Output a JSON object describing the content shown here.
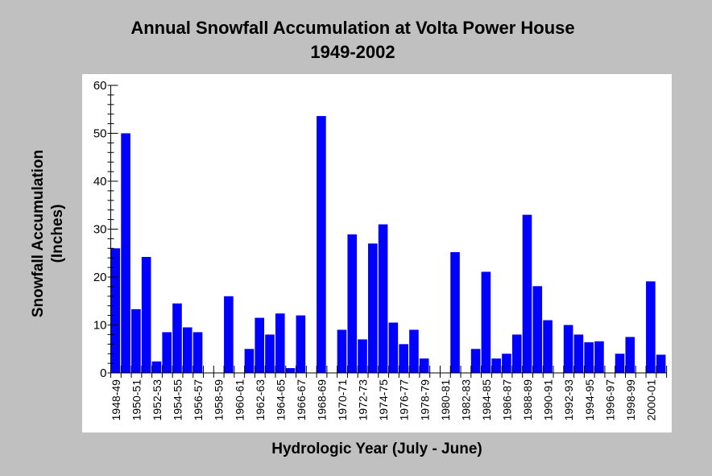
{
  "chart_data": {
    "type": "bar",
    "title": "Annual Snowfall Accumulation at Volta Power House",
    "subtitle": "1949-2002",
    "xlabel": "Hydrologic Year (July - June)",
    "ylabel_line1": "Snowfall Accumulation",
    "ylabel_line2": "(Inches)",
    "ylim": [
      0,
      60
    ],
    "yticks": [
      0,
      10,
      20,
      30,
      40,
      50,
      60
    ],
    "grid": false,
    "bar_color": "#0000ff",
    "categories": [
      "1948-49",
      "1949-50",
      "1950-51",
      "1951-52",
      "1952-53",
      "1953-54",
      "1954-55",
      "1955-56",
      "1956-57",
      "1957-58",
      "1958-59",
      "1959-60",
      "1960-61",
      "1961-62",
      "1962-63",
      "1963-64",
      "1964-65",
      "1965-66",
      "1966-67",
      "1967-68",
      "1968-69",
      "1969-70",
      "1970-71",
      "1971-72",
      "1972-73",
      "1973-74",
      "1974-75",
      "1975-76",
      "1976-77",
      "1977-78",
      "1978-79",
      "1979-80",
      "1980-81",
      "1981-82",
      "1982-83",
      "1983-84",
      "1984-85",
      "1985-86",
      "1986-87",
      "1987-88",
      "1988-89",
      "1989-90",
      "1990-91",
      "1991-92",
      "1992-93",
      "1993-94",
      "1994-95",
      "1995-96",
      "1996-97",
      "1997-98",
      "1998-99",
      "1999-00",
      "2000-01",
      "2001-02"
    ],
    "tick_labels": [
      "1948-49",
      "1950-51",
      "1952-53",
      "1954-55",
      "1956-57",
      "1958-59",
      "1960-61",
      "1962-63",
      "1964-65",
      "1966-67",
      "1968-69",
      "1970-71",
      "1972-73",
      "1974-75",
      "1976-77",
      "1978-79",
      "1980-81",
      "1982-83",
      "1984-85",
      "1986-87",
      "1988-89",
      "1990-91",
      "1992-93",
      "1994-95",
      "1996-97",
      "1998-99",
      "2000-01"
    ],
    "values": [
      26,
      50,
      13.3,
      24.2,
      2.4,
      8.5,
      14.5,
      9.5,
      8.5,
      0,
      0,
      16,
      0,
      5,
      11.5,
      8,
      12.4,
      1,
      12,
      0,
      53.6,
      0,
      9,
      28.9,
      7,
      27,
      31,
      10.5,
      6,
      9,
      3,
      0,
      0,
      25.2,
      0,
      5,
      21.1,
      3,
      4,
      8,
      33,
      18.1,
      11,
      0,
      10,
      8,
      6.4,
      6.6,
      0,
      4,
      7.5,
      0,
      19.1,
      3.8
    ]
  }
}
